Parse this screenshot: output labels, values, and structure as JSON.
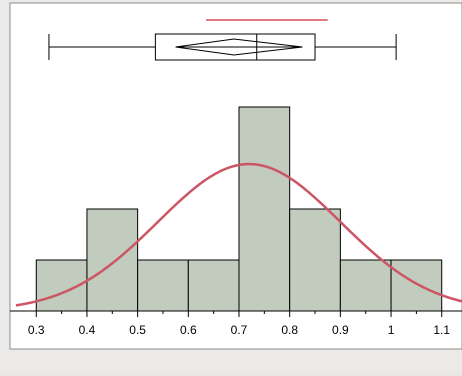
{
  "chart_data": {
    "type": "bar",
    "subtype": "histogram",
    "bins": [
      {
        "start": 0.3,
        "end": 0.4,
        "count": 1
      },
      {
        "start": 0.4,
        "end": 0.5,
        "count": 2
      },
      {
        "start": 0.5,
        "end": 0.6,
        "count": 1
      },
      {
        "start": 0.6,
        "end": 0.7,
        "count": 1
      },
      {
        "start": 0.7,
        "end": 0.8,
        "count": 4
      },
      {
        "start": 0.8,
        "end": 0.9,
        "count": 2
      },
      {
        "start": 0.9,
        "end": 1.0,
        "count": 1
      },
      {
        "start": 1.0,
        "end": 1.1,
        "count": 1
      }
    ],
    "normal_curve": {
      "mean": 0.72,
      "sd": 0.18,
      "color": "#cc5566"
    },
    "box_plot": {
      "min": 0.325,
      "q1": 0.535,
      "median": 0.735,
      "q3": 0.85,
      "max": 1.01,
      "mean_diamond": {
        "center": 0.69,
        "low": 0.575,
        "high": 0.825
      },
      "shortest_half": [
        0.635,
        0.875
      ],
      "shortest_half_color": "#d64d5e"
    },
    "x_ticks": [
      "0.3",
      "0.4",
      "0.5",
      "0.6",
      "0.7",
      "0.8",
      "0.9",
      "1",
      "1.1"
    ],
    "xlim": [
      0.26,
      1.14
    ],
    "grid": false,
    "bar_color": "#c2ccbe",
    "title": "",
    "xlabel": "",
    "ylabel": ""
  }
}
